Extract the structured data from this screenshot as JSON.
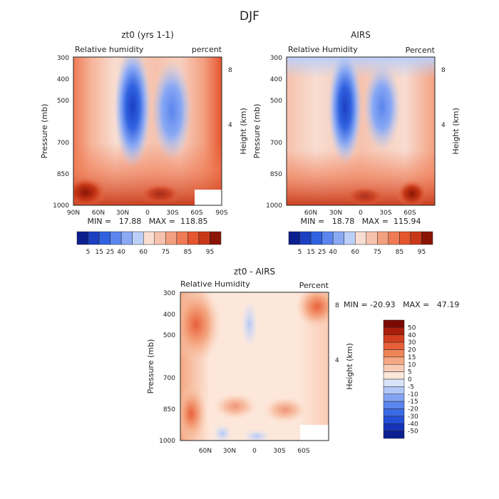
{
  "figure_title": "DJF",
  "colors": {
    "rh_palette": [
      "#0b1f8f",
      "#1c3fc0",
      "#3062e0",
      "#5b85ee",
      "#8aa9f4",
      "#bccff8",
      "#f8ddd1",
      "#f6c2ad",
      "#f3a080",
      "#ef7b55",
      "#e5552e",
      "#c83818",
      "#8a1405"
    ],
    "diff_palette": [
      "#0b1f8f",
      "#1634b8",
      "#2450d6",
      "#3a6ae6",
      "#5b85ee",
      "#84a4f2",
      "#b3c8f7",
      "#d9e4fb",
      "#fde7da",
      "#f9ccb5",
      "#f4a883",
      "#ef8559",
      "#e8603a",
      "#d43f1f",
      "#a81e0b",
      "#7a0a02"
    ]
  },
  "chart_data": [
    {
      "type": "heatmap",
      "title": "zt0 (yrs 1-1)",
      "subtitle_left": "Relative humidity",
      "subtitle_right": "percent",
      "ylabel": "Pressure (mb)",
      "ylabel_right": "Height (km)",
      "x_ticks": [
        "90N",
        "60N",
        "30N",
        "0",
        "30S",
        "60S",
        "90S"
      ],
      "y_ticks": [
        "300",
        "400",
        "500",
        "700",
        "850",
        "1000"
      ],
      "right_ticks": [
        "8",
        "4"
      ],
      "stats": "MIN =   17.88   MAX =  118.85",
      "colorbar_labels": [
        "5",
        "15",
        "25",
        "40",
        "60",
        "75",
        "85",
        "95"
      ],
      "legend_placement": "bottom",
      "missing_region": "60S-90S near surface"
    },
    {
      "type": "heatmap",
      "title": "AIRS",
      "subtitle_left": "Relative Humidity",
      "subtitle_right": "Percent",
      "ylabel": "Pressure (mb)",
      "ylabel_right": "Height (km)",
      "x_ticks": [
        "60N",
        "30N",
        "0",
        "30S",
        "60S"
      ],
      "y_ticks": [
        "300",
        "400",
        "500",
        "700",
        "850",
        "1000"
      ],
      "right_ticks": [
        "8",
        "4"
      ],
      "stats": "MIN =   18.78   MAX =  115.94",
      "colorbar_labels": [
        "5",
        "15",
        "25",
        "40",
        "60",
        "75",
        "85",
        "95"
      ],
      "legend_placement": "bottom"
    },
    {
      "type": "heatmap",
      "title": "zt0 - AIRS",
      "subtitle_left": "Relative Humidity",
      "subtitle_right": "Percent",
      "ylabel": "Pressure (mb)",
      "ylabel_right": "Height (km)",
      "x_ticks": [
        "60N",
        "30N",
        "0",
        "30S",
        "60S"
      ],
      "y_ticks": [
        "300",
        "400",
        "500",
        "700",
        "850",
        "1000"
      ],
      "right_ticks": [
        "8",
        "4"
      ],
      "stats": "MIN = -20.93   MAX =   47.19",
      "colorbar_labels": [
        "50",
        "40",
        "30",
        "20",
        "15",
        "10",
        "5",
        "0",
        "-5",
        "-10",
        "-15",
        "-20",
        "-30",
        "-40",
        "-50"
      ],
      "legend_placement": "right",
      "missing_region": "60S-90S near surface"
    }
  ]
}
